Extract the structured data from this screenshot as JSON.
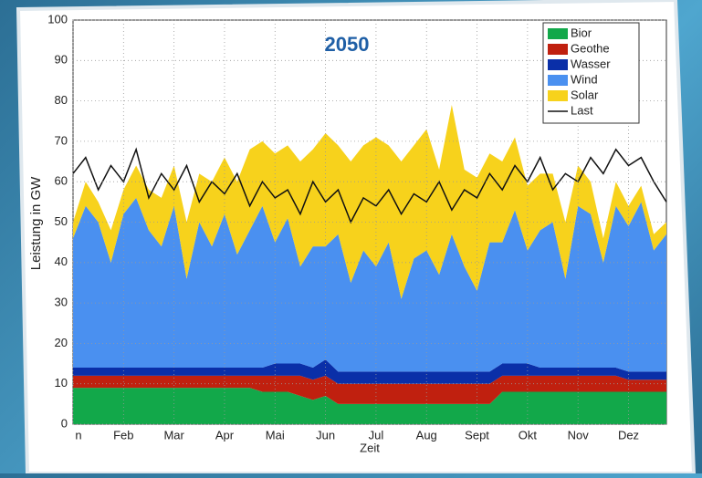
{
  "chart_data": {
    "type": "stacked-area",
    "title": "2050",
    "x_label": "Zeit",
    "y_label": "Leistung in GW",
    "categories": [
      "n",
      null,
      null,
      null,
      "Feb",
      null,
      null,
      null,
      "Mar",
      null,
      null,
      null,
      "Apr",
      null,
      null,
      null,
      "Mai",
      null,
      null,
      null,
      "Jun",
      null,
      null,
      null,
      "Jul",
      null,
      null,
      null,
      "Aug",
      null,
      null,
      null,
      "Sept",
      null,
      null,
      null,
      "Okt",
      null,
      null,
      null,
      "Nov",
      null,
      null,
      null,
      "Dez",
      null,
      null,
      null
    ],
    "ylim": [
      0,
      100
    ],
    "yticks": [
      0,
      10,
      20,
      30,
      40,
      50,
      60,
      70,
      80,
      90,
      100
    ],
    "grid": true,
    "series": [
      {
        "name": "Bior",
        "color": "#12a84a",
        "values": [
          9,
          9,
          9,
          9,
          9,
          9,
          9,
          9,
          9,
          9,
          9,
          9,
          9,
          9,
          9,
          8,
          8,
          8,
          7,
          6,
          7,
          5,
          5,
          5,
          5,
          5,
          5,
          5,
          5,
          5,
          5,
          5,
          5,
          5,
          8,
          8,
          8,
          8,
          8,
          8,
          8,
          8,
          8,
          8,
          8,
          8,
          8,
          8
        ]
      },
      {
        "name": "Geothe",
        "color": "#c0200f",
        "values": [
          3,
          3,
          3,
          3,
          3,
          3,
          3,
          3,
          3,
          3,
          3,
          3,
          3,
          3,
          3,
          4,
          4,
          4,
          5,
          5,
          5,
          5,
          5,
          5,
          5,
          5,
          5,
          5,
          5,
          5,
          5,
          5,
          5,
          5,
          4,
          4,
          4,
          4,
          4,
          4,
          4,
          4,
          4,
          4,
          3,
          3,
          3,
          3
        ]
      },
      {
        "name": "Wasser",
        "color": "#0a2fa8",
        "values": [
          2,
          2,
          2,
          2,
          2,
          2,
          2,
          2,
          2,
          2,
          2,
          2,
          2,
          2,
          2,
          2,
          3,
          3,
          3,
          3,
          4,
          3,
          3,
          3,
          3,
          3,
          3,
          3,
          3,
          3,
          3,
          3,
          3,
          3,
          3,
          3,
          3,
          2,
          2,
          2,
          2,
          2,
          2,
          2,
          2,
          2,
          2,
          2
        ]
      },
      {
        "name": "Wind",
        "color": "#4a90f0",
        "values": [
          32,
          40,
          36,
          26,
          38,
          42,
          34,
          30,
          40,
          22,
          36,
          30,
          38,
          28,
          34,
          40,
          30,
          36,
          24,
          30,
          28,
          34,
          22,
          30,
          26,
          32,
          18,
          28,
          30,
          24,
          34,
          26,
          20,
          32,
          30,
          38,
          28,
          34,
          36,
          22,
          40,
          38,
          26,
          40,
          36,
          42,
          30,
          34
        ]
      },
      {
        "name": "Solar",
        "color": "#f7d21c",
        "values": [
          4,
          6,
          5,
          8,
          6,
          8,
          10,
          12,
          10,
          14,
          12,
          16,
          14,
          18,
          20,
          16,
          22,
          18,
          26,
          24,
          28,
          22,
          30,
          26,
          32,
          24,
          34,
          28,
          30,
          26,
          32,
          24,
          28,
          22,
          20,
          18,
          16,
          14,
          12,
          14,
          10,
          8,
          6,
          6,
          5,
          4,
          4,
          3
        ]
      },
      {
        "name": "Last",
        "color": "#111111",
        "type": "line",
        "values": [
          62,
          66,
          58,
          64,
          60,
          68,
          56,
          62,
          58,
          64,
          55,
          60,
          57,
          62,
          54,
          60,
          56,
          58,
          52,
          60,
          55,
          58,
          50,
          56,
          54,
          58,
          52,
          57,
          55,
          60,
          53,
          58,
          56,
          62,
          58,
          64,
          60,
          66,
          58,
          62,
          60,
          66,
          62,
          68,
          64,
          66,
          60,
          55
        ]
      }
    ]
  }
}
